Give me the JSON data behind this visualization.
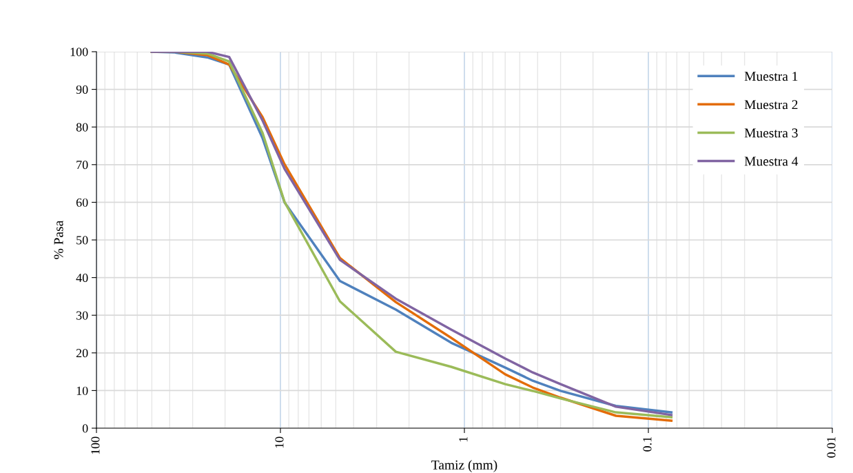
{
  "chart_data": {
    "type": "line",
    "xlabel": "Tamiz (mm)",
    "ylabel": "% Pasa",
    "log": "x",
    "x": [
      50,
      37.5,
      25,
      19,
      12.5,
      9.5,
      4.75,
      2.36,
      1.18,
      0.6,
      0.425,
      0.3,
      0.15,
      0.075
    ],
    "series": [
      {
        "name": "Muestra 1",
        "color": "#4f81bd",
        "values": [
          100,
          99.8,
          98.5,
          96.6,
          77,
          60,
          39.1,
          31.5,
          22.7,
          16.1,
          12.6,
          9.9,
          5.9,
          4.2
        ]
      },
      {
        "name": "Muestra 2",
        "color": "#e36c09",
        "values": [
          100,
          100,
          99.1,
          96.6,
          82.6,
          70.1,
          45.2,
          33.5,
          24.0,
          14.3,
          10.8,
          8.1,
          3.3,
          2.0
        ]
      },
      {
        "name": "Muestra 3",
        "color": "#9bbb59",
        "values": [
          100,
          100,
          99.5,
          97.4,
          78.4,
          60.1,
          33.7,
          20.3,
          16.3,
          11.7,
          9.9,
          7.9,
          4.2,
          2.9
        ]
      },
      {
        "name": "Muestra 4",
        "color": "#8064a2",
        "values": [
          100,
          100,
          100,
          98.6,
          81.7,
          68.9,
          44.7,
          34.4,
          26.2,
          18.5,
          14.8,
          11.7,
          5.7,
          3.5
        ]
      }
    ],
    "xlim": [
      100,
      0.01
    ],
    "xticks": [
      100,
      10,
      1,
      0.1,
      0.01
    ],
    "ylim": [
      0,
      100
    ],
    "yticks": [
      0,
      10,
      20,
      30,
      40,
      50,
      60,
      70,
      80,
      90,
      100
    ],
    "grid": true,
    "legend": "top right",
    "marker": "none",
    "line_style": "solid"
  }
}
